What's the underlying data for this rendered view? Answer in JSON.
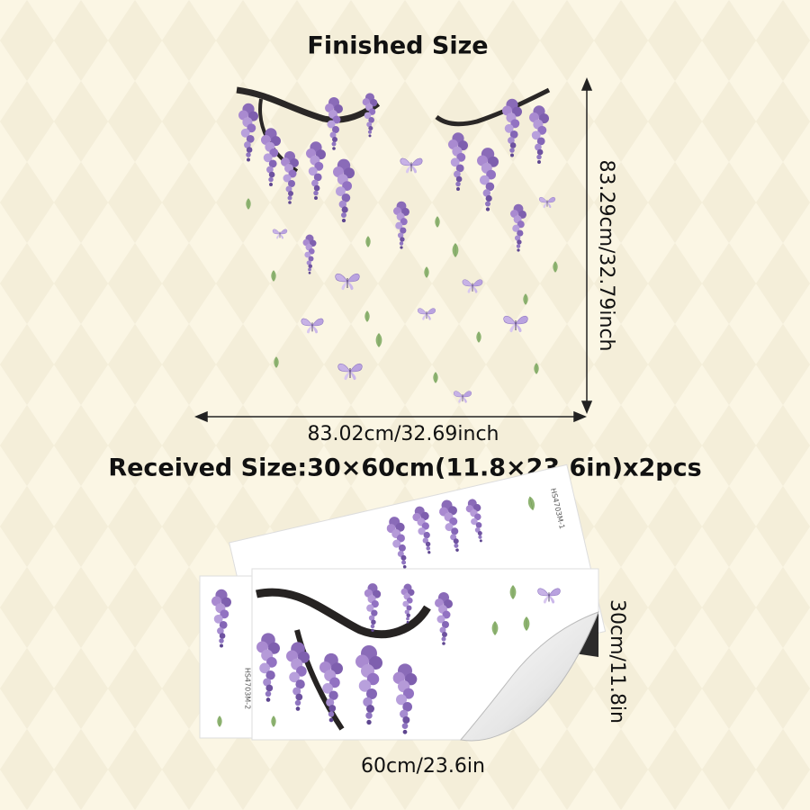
{
  "title": "Finished Size",
  "finished": {
    "height": "83.29cm/32.79inch",
    "width": "83.02cm/32.69inch"
  },
  "received": {
    "title": "Received Size:30×60cm(11.8×23.6in)x2pcs",
    "height": "30cm/11.8in",
    "width": "60cm/23.6in",
    "sheet_codes": [
      "HS4703M-1",
      "HS4703M-2"
    ]
  }
}
